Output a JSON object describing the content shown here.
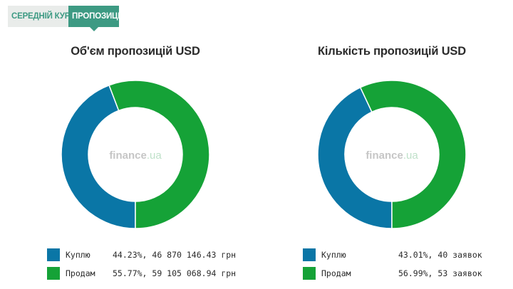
{
  "tabs": [
    {
      "label": "СЕРЕДНІЙ КУРС",
      "active": false
    },
    {
      "label": "ПРОПОЗИЦІЇ",
      "active": true
    }
  ],
  "watermark": {
    "brand": "finance",
    "suffix": ".ua"
  },
  "colors": {
    "buy": "#0a76a6",
    "sell": "#15a237",
    "tab_accent": "#3d9a83"
  },
  "chart_data": [
    {
      "type": "pie",
      "title": "Об'єм пропозицій USD",
      "categories": [
        "Куплю",
        "Продам"
      ],
      "values": [
        44.23,
        55.77
      ],
      "legend": [
        {
          "label": "Куплю",
          "percent": "44.23%",
          "detail": "46 870 146.43 грн"
        },
        {
          "label": "Продам",
          "percent": "55.77%",
          "detail": "59 105 068.94 грн"
        }
      ]
    },
    {
      "type": "pie",
      "title": "Кількість пропозицій USD",
      "categories": [
        "Куплю",
        "Продам"
      ],
      "values": [
        43.01,
        56.99
      ],
      "legend": [
        {
          "label": "Куплю",
          "percent": "43.01%",
          "detail": "40 заявок"
        },
        {
          "label": "Продам",
          "percent": "56.99%",
          "detail": "53 заявок"
        }
      ]
    }
  ]
}
